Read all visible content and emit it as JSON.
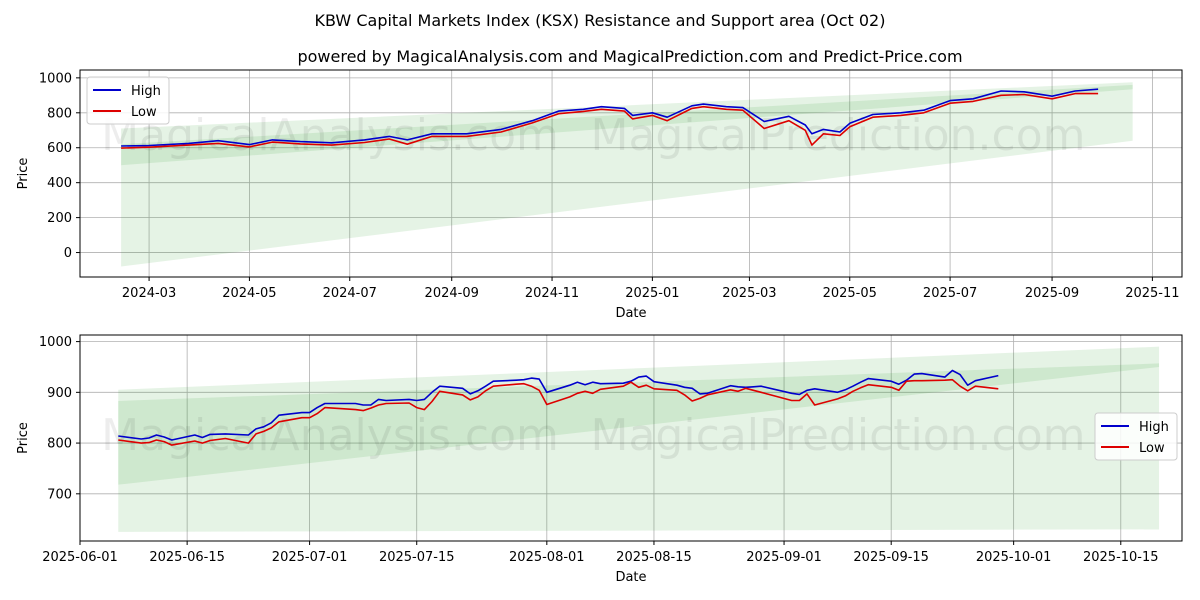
{
  "title": "KBW Capital Markets Index (KSX) Resistance and Support area (Oct 02)",
  "subtitle": "powered by MagicalAnalysis.com and MagicalPrediction.com and Predict-Price.com",
  "watermarks": [
    "MagicalAnalysis.com",
    "MagicalPrediction.com"
  ],
  "colors": {
    "high": "#0000cc",
    "low": "#dd0000",
    "band": "#2ca02c",
    "grid": "#b0b0b0"
  },
  "chart_data": [
    {
      "type": "line",
      "panel": "top",
      "xlabel": "Date",
      "ylabel": "Price",
      "xlim": [
        "2024-01-19",
        "2025-11-19"
      ],
      "ylim": [
        -140,
        1045
      ],
      "xticks": [
        "2024-03-01",
        "2024-05-01",
        "2024-07-01",
        "2024-09-01",
        "2024-11-01",
        "2025-01-01",
        "2025-03-01",
        "2025-05-01",
        "2025-07-01",
        "2025-09-01",
        "2025-11-01"
      ],
      "xtick_labels": [
        "2024-03",
        "2024-05",
        "2024-07",
        "2024-09",
        "2024-11",
        "2025-01",
        "2025-03",
        "2025-05",
        "2025-07",
        "2025-09",
        "2025-11"
      ],
      "yticks": [
        0,
        200,
        400,
        600,
        800,
        1000
      ],
      "ytick_labels": [
        "0",
        "200",
        "400",
        "600",
        "800",
        "1000"
      ],
      "legend": {
        "position": "top-left",
        "entries": [
          "High",
          "Low"
        ]
      },
      "bands": [
        {
          "x": [
            "2024-02-13",
            "2025-10-20"
          ],
          "lower": [
            -80,
            640
          ],
          "upper": [
            710,
            975
          ],
          "opacity": 0.12
        },
        {
          "x": [
            "2024-02-13",
            "2025-10-20"
          ],
          "lower": [
            500,
            935
          ],
          "upper": [
            620,
            960
          ],
          "opacity": 0.12
        }
      ],
      "series": [
        {
          "name": "High",
          "x": [
            "2024-02-13",
            "2024-03-01",
            "2024-03-25",
            "2024-04-12",
            "2024-05-01",
            "2024-05-15",
            "2024-06-01",
            "2024-06-20",
            "2024-07-10",
            "2024-07-25",
            "2024-08-05",
            "2024-08-20",
            "2024-09-10",
            "2024-10-01",
            "2024-10-20",
            "2024-11-05",
            "2024-11-20",
            "2024-12-01",
            "2024-12-15",
            "2024-12-20",
            "2025-01-01",
            "2025-01-10",
            "2025-01-25",
            "2025-02-01",
            "2025-02-15",
            "2025-02-25",
            "2025-03-10",
            "2025-03-25",
            "2025-04-04",
            "2025-04-08",
            "2025-04-15",
            "2025-04-25",
            "2025-05-01",
            "2025-05-15",
            "2025-06-01",
            "2025-06-15",
            "2025-07-01",
            "2025-07-15",
            "2025-08-01",
            "2025-08-15",
            "2025-09-01",
            "2025-09-15",
            "2025-09-29"
          ],
          "values": [
            610,
            613,
            625,
            640,
            618,
            645,
            635,
            628,
            645,
            665,
            645,
            680,
            680,
            705,
            755,
            810,
            820,
            835,
            825,
            785,
            800,
            775,
            840,
            850,
            835,
            830,
            750,
            780,
            730,
            680,
            705,
            690,
            740,
            790,
            800,
            815,
            870,
            880,
            925,
            920,
            895,
            925,
            935
          ]
        },
        {
          "name": "Low",
          "x": [
            "2024-02-13",
            "2024-03-01",
            "2024-03-25",
            "2024-04-12",
            "2024-05-01",
            "2024-05-15",
            "2024-06-01",
            "2024-06-20",
            "2024-07-10",
            "2024-07-25",
            "2024-08-05",
            "2024-08-20",
            "2024-09-10",
            "2024-10-01",
            "2024-10-20",
            "2024-11-05",
            "2024-11-20",
            "2024-12-01",
            "2024-12-15",
            "2024-12-20",
            "2025-01-01",
            "2025-01-10",
            "2025-01-25",
            "2025-02-01",
            "2025-02-15",
            "2025-02-25",
            "2025-03-10",
            "2025-03-25",
            "2025-04-04",
            "2025-04-08",
            "2025-04-15",
            "2025-04-25",
            "2025-05-01",
            "2025-05-15",
            "2025-06-01",
            "2025-06-15",
            "2025-07-01",
            "2025-07-15",
            "2025-08-01",
            "2025-08-15",
            "2025-09-01",
            "2025-09-15",
            "2025-09-29"
          ],
          "values": [
            598,
            603,
            615,
            625,
            605,
            632,
            622,
            615,
            630,
            650,
            620,
            665,
            665,
            690,
            742,
            795,
            808,
            820,
            810,
            765,
            785,
            755,
            825,
            835,
            820,
            815,
            710,
            755,
            700,
            615,
            680,
            670,
            720,
            775,
            785,
            800,
            855,
            865,
            900,
            905,
            880,
            910,
            910
          ]
        }
      ]
    },
    {
      "type": "line",
      "panel": "bottom",
      "xlabel": "Date",
      "ylabel": "Price",
      "xlim": [
        "2025-06-01",
        "2025-10-23"
      ],
      "ylim": [
        607,
        1013
      ],
      "xticks": [
        "2025-06-01",
        "2025-06-15",
        "2025-07-01",
        "2025-07-15",
        "2025-08-01",
        "2025-08-15",
        "2025-09-01",
        "2025-09-15",
        "2025-10-01",
        "2025-10-15"
      ],
      "xtick_labels": [
        "2025-06-01",
        "2025-06-15",
        "2025-07-01",
        "2025-07-15",
        "2025-08-01",
        "2025-08-15",
        "2025-09-01",
        "2025-09-15",
        "2025-10-01",
        "2025-10-15"
      ],
      "yticks": [
        700,
        800,
        900,
        1000
      ],
      "ytick_labels": [
        "700",
        "800",
        "900",
        "1000"
      ],
      "legend": {
        "position": "center-right",
        "entries": [
          "High",
          "Low"
        ]
      },
      "bands": [
        {
          "x": [
            "2025-06-06",
            "2025-10-20"
          ],
          "lower": [
            625,
            630
          ],
          "upper": [
            905,
            990
          ],
          "opacity": 0.12
        },
        {
          "x": [
            "2025-06-06",
            "2025-10-20"
          ],
          "lower": [
            718,
            950
          ],
          "upper": [
            883,
            957
          ],
          "opacity": 0.12
        }
      ],
      "series": [
        {
          "name": "High",
          "x": [
            "2025-06-06",
            "2025-06-09",
            "2025-06-10",
            "2025-06-11",
            "2025-06-12",
            "2025-06-13",
            "2025-06-16",
            "2025-06-17",
            "2025-06-18",
            "2025-06-20",
            "2025-06-23",
            "2025-06-24",
            "2025-06-25",
            "2025-06-26",
            "2025-06-27",
            "2025-06-30",
            "2025-07-01",
            "2025-07-02",
            "2025-07-03",
            "2025-07-07",
            "2025-07-08",
            "2025-07-09",
            "2025-07-10",
            "2025-07-11",
            "2025-07-14",
            "2025-07-15",
            "2025-07-16",
            "2025-07-17",
            "2025-07-18",
            "2025-07-21",
            "2025-07-22",
            "2025-07-23",
            "2025-07-24",
            "2025-07-25",
            "2025-07-28",
            "2025-07-29",
            "2025-07-30",
            "2025-07-31",
            "2025-08-01",
            "2025-08-04",
            "2025-08-05",
            "2025-08-06",
            "2025-08-07",
            "2025-08-08",
            "2025-08-11",
            "2025-08-12",
            "2025-08-13",
            "2025-08-14",
            "2025-08-15",
            "2025-08-18",
            "2025-08-19",
            "2025-08-20",
            "2025-08-21",
            "2025-08-22",
            "2025-08-25",
            "2025-08-26",
            "2025-08-27",
            "2025-08-28",
            "2025-08-29",
            "2025-09-02",
            "2025-09-03",
            "2025-09-04",
            "2025-09-05",
            "2025-09-08",
            "2025-09-09",
            "2025-09-10",
            "2025-09-11",
            "2025-09-12",
            "2025-09-15",
            "2025-09-16",
            "2025-09-17",
            "2025-09-18",
            "2025-09-19",
            "2025-09-22",
            "2025-09-23",
            "2025-09-24",
            "2025-09-25",
            "2025-09-26",
            "2025-09-29"
          ],
          "values": [
            814,
            808,
            810,
            816,
            812,
            806,
            816,
            811,
            817,
            818,
            816,
            828,
            832,
            840,
            855,
            860,
            860,
            870,
            878,
            878,
            875,
            875,
            886,
            884,
            886,
            884,
            886,
            900,
            912,
            908,
            897,
            903,
            912,
            922,
            924,
            925,
            928,
            926,
            900,
            914,
            920,
            915,
            920,
            917,
            918,
            922,
            930,
            932,
            921,
            914,
            910,
            908,
            897,
            898,
            913,
            911,
            910,
            911,
            912,
            898,
            896,
            904,
            907,
            900,
            905,
            912,
            920,
            927,
            922,
            916,
            924,
            936,
            937,
            930,
            943,
            935,
            914,
            923,
            933
          ]
        },
        {
          "name": "Low",
          "x": [
            "2025-06-06",
            "2025-06-09",
            "2025-06-10",
            "2025-06-11",
            "2025-06-12",
            "2025-06-13",
            "2025-06-16",
            "2025-06-17",
            "2025-06-18",
            "2025-06-20",
            "2025-06-23",
            "2025-06-24",
            "2025-06-25",
            "2025-06-26",
            "2025-06-27",
            "2025-06-30",
            "2025-07-01",
            "2025-07-02",
            "2025-07-03",
            "2025-07-07",
            "2025-07-08",
            "2025-07-09",
            "2025-07-10",
            "2025-07-11",
            "2025-07-14",
            "2025-07-15",
            "2025-07-16",
            "2025-07-17",
            "2025-07-18",
            "2025-07-21",
            "2025-07-22",
            "2025-07-23",
            "2025-07-24",
            "2025-07-25",
            "2025-07-28",
            "2025-07-29",
            "2025-07-30",
            "2025-07-31",
            "2025-08-01",
            "2025-08-04",
            "2025-08-05",
            "2025-08-06",
            "2025-08-07",
            "2025-08-08",
            "2025-08-11",
            "2025-08-12",
            "2025-08-13",
            "2025-08-14",
            "2025-08-15",
            "2025-08-18",
            "2025-08-19",
            "2025-08-20",
            "2025-08-21",
            "2025-08-22",
            "2025-08-25",
            "2025-08-26",
            "2025-08-27",
            "2025-08-28",
            "2025-08-29",
            "2025-09-02",
            "2025-09-03",
            "2025-09-04",
            "2025-09-05",
            "2025-09-08",
            "2025-09-09",
            "2025-09-10",
            "2025-09-11",
            "2025-09-12",
            "2025-09-15",
            "2025-09-16",
            "2025-09-17",
            "2025-09-18",
            "2025-09-19",
            "2025-09-22",
            "2025-09-23",
            "2025-09-24",
            "2025-09-25",
            "2025-09-26",
            "2025-09-29"
          ],
          "values": [
            806,
            800,
            801,
            806,
            803,
            796,
            804,
            800,
            805,
            809,
            800,
            818,
            823,
            830,
            842,
            850,
            850,
            858,
            870,
            866,
            864,
            869,
            875,
            878,
            879,
            870,
            866,
            882,
            902,
            895,
            885,
            891,
            903,
            912,
            916,
            917,
            912,
            904,
            876,
            891,
            898,
            902,
            898,
            906,
            912,
            920,
            910,
            914,
            907,
            904,
            895,
            883,
            888,
            895,
            905,
            902,
            908,
            904,
            900,
            884,
            884,
            897,
            875,
            887,
            893,
            902,
            909,
            915,
            910,
            904,
            922,
            923,
            923,
            924,
            925,
            912,
            903,
            912,
            907
          ]
        }
      ]
    }
  ]
}
